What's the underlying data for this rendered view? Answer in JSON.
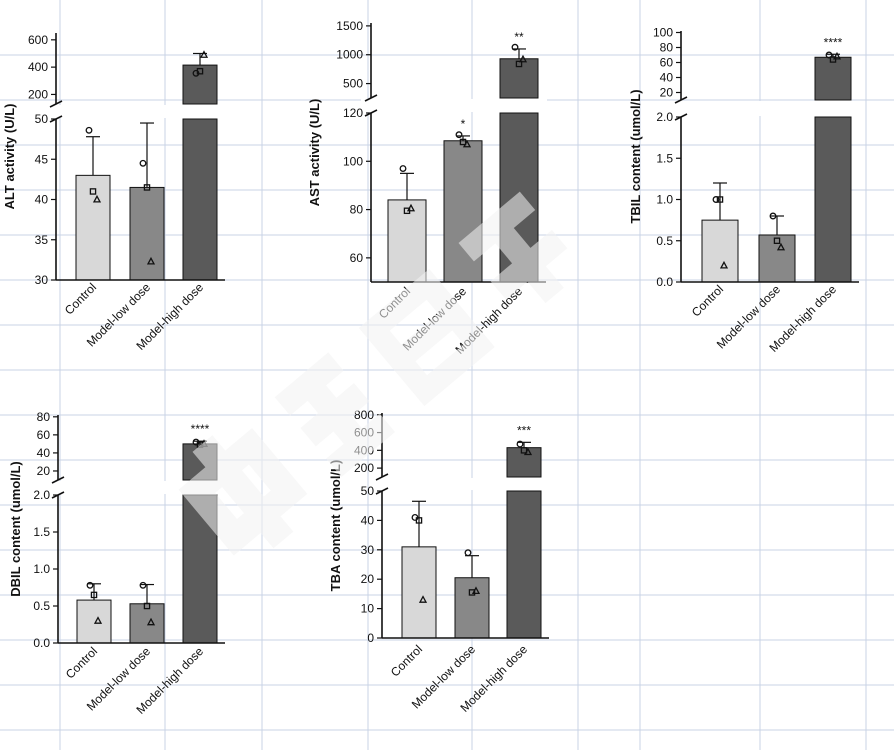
{
  "chart_data": [
    {
      "type": "bar",
      "panel": "ALT",
      "ylabel": "ALT activity (U/L)",
      "categories": [
        "Control",
        "Model-low dose",
        "Model-high dose"
      ],
      "values": [
        43,
        41.5,
        415
      ],
      "errors": [
        4.8,
        8,
        85
      ],
      "points": [
        [
          48.6,
          41,
          40
        ],
        [
          44.5,
          41.5,
          32.3
        ],
        [
          355,
          370,
          490
        ]
      ],
      "significance": [
        "",
        "",
        ""
      ],
      "bar_colors": [
        "#d8d8d8",
        "#888888",
        "#5a5a5a"
      ],
      "segments": [
        {
          "range": [
            30,
            50
          ],
          "ticks": [
            30,
            35,
            40,
            45,
            50
          ]
        },
        {
          "range": [
            130,
            650
          ],
          "ticks": [
            200,
            400,
            600
          ]
        }
      ],
      "grid": false
    },
    {
      "type": "bar",
      "panel": "AST",
      "ylabel": "AST activity (U/L)",
      "categories": [
        "Control",
        "Model-low dose",
        "Model-high dose"
      ],
      "values": [
        84,
        108.5,
        930
      ],
      "errors": [
        11,
        2,
        170
      ],
      "points": [
        [
          97,
          79.5,
          80.5
        ],
        [
          111,
          108,
          107
        ],
        [
          1130,
          840,
          920
        ]
      ],
      "significance": [
        "",
        "*",
        "**"
      ],
      "bar_colors": [
        "#d8d8d8",
        "#888888",
        "#5a5a5a"
      ],
      "segments": [
        {
          "range": [
            50,
            120
          ],
          "ticks": [
            60,
            80,
            100,
            120
          ]
        },
        {
          "range": [
            250,
            1550
          ],
          "ticks": [
            500,
            1000,
            1500
          ]
        }
      ],
      "grid": false
    },
    {
      "type": "bar",
      "panel": "TBIL",
      "ylabel": "TBIL content (umol/L)",
      "categories": [
        "Control",
        "Model-low dose",
        "Model-high dose"
      ],
      "values": [
        0.75,
        0.57,
        67
      ],
      "errors": [
        0.45,
        0.23,
        4
      ],
      "points": [
        [
          1.0,
          1.0,
          0.2
        ],
        [
          0.8,
          0.5,
          0.42
        ],
        [
          70,
          64,
          68
        ]
      ],
      "significance": [
        "",
        "",
        "****"
      ],
      "bar_colors": [
        "#d8d8d8",
        "#888888",
        "#5a5a5a"
      ],
      "segments": [
        {
          "range": [
            0,
            2
          ],
          "ticks": [
            0.0,
            0.5,
            1.0,
            1.5,
            2.0
          ]
        },
        {
          "range": [
            10,
            102
          ],
          "ticks": [
            20,
            40,
            60,
            80,
            100
          ]
        }
      ],
      "grid": false
    },
    {
      "type": "bar",
      "panel": "DBIL",
      "ylabel": "DBIL content (umol/L)",
      "categories": [
        "Control",
        "Model-low dose",
        "Model-high dose"
      ],
      "values": [
        0.58,
        0.53,
        50
      ],
      "errors": [
        0.22,
        0.26,
        3
      ],
      "points": [
        [
          0.78,
          0.65,
          0.3
        ],
        [
          0.78,
          0.5,
          0.28
        ],
        [
          52,
          49,
          50
        ]
      ],
      "significance": [
        "",
        "",
        "****"
      ],
      "bar_colors": [
        "#d8d8d8",
        "#888888",
        "#5a5a5a"
      ],
      "segments": [
        {
          "range": [
            0,
            2
          ],
          "ticks": [
            0.0,
            0.5,
            1.0,
            1.5,
            2.0
          ]
        },
        {
          "range": [
            10,
            82
          ],
          "ticks": [
            20,
            40,
            60,
            80
          ]
        }
      ],
      "grid": false
    },
    {
      "type": "bar",
      "panel": "TBA",
      "ylabel": "TBA content (umol/L)",
      "categories": [
        "Control",
        "Model-low dose",
        "Model-high dose"
      ],
      "values": [
        31,
        20.5,
        430
      ],
      "errors": [
        15.5,
        7.5,
        60
      ],
      "points": [
        [
          41,
          40,
          13
        ],
        [
          29,
          15.5,
          16
        ],
        [
          470,
          400,
          380
        ]
      ],
      "significance": [
        "",
        "",
        "***"
      ],
      "bar_colors": [
        "#d8d8d8",
        "#888888",
        "#5a5a5a"
      ],
      "segments": [
        {
          "range": [
            0,
            50
          ],
          "ticks": [
            0,
            10,
            20,
            30,
            40,
            50
          ]
        },
        {
          "range": [
            100,
            820
          ],
          "ticks": [
            200,
            400,
            600,
            800
          ]
        }
      ],
      "grid": false
    }
  ]
}
